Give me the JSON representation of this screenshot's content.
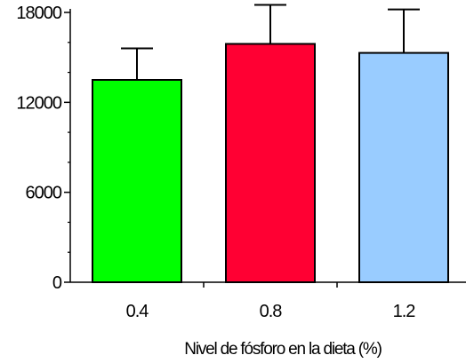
{
  "chart_data": {
    "type": "bar",
    "categories": [
      "0.4",
      "0.8",
      "1.2"
    ],
    "values": [
      13500,
      15900,
      15300
    ],
    "errors": [
      2100,
      2600,
      2900
    ],
    "colors": [
      "#00ff00",
      "#ff0033",
      "#99ccff"
    ],
    "xlabel": "Nivel de fósforo en la dieta (%)",
    "ylabel": "",
    "ylim": [
      0,
      18000
    ],
    "yticks": [
      0,
      6000,
      12000,
      18000
    ],
    "yticks_labels": [
      "0",
      "6000",
      "12000",
      "18000"
    ],
    "minor_ytick_step": 2000,
    "error_bars": "upper-only",
    "grid": false,
    "legend": "none"
  }
}
